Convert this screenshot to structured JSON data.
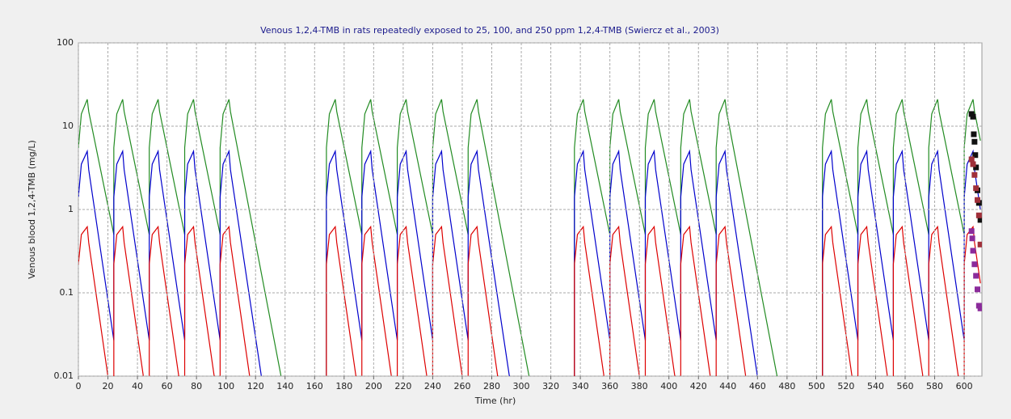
{
  "chart_data": {
    "type": "line",
    "title": "Venous 1,2,4-TMB in rats repeatedly exposed to 25, 100, and 250 ppm 1,2,4-TMB (Swiercz et al., 2003)",
    "x_label": "Time (hr)",
    "y_label": "Venous blood 1,2,4-TMB (mg/L)",
    "xlim": [
      0,
      612
    ],
    "ylim": [
      0.01,
      100
    ],
    "log_y": true,
    "grid": true,
    "xticks": [
      0,
      20,
      40,
      60,
      80,
      100,
      120,
      140,
      160,
      180,
      200,
      220,
      240,
      260,
      280,
      300,
      320,
      340,
      360,
      380,
      400,
      420,
      440,
      460,
      480,
      500,
      520,
      540,
      560,
      580,
      600
    ],
    "yticks": [
      0.01,
      0.1,
      1,
      10,
      100
    ],
    "series": [
      {
        "style": "line",
        "color": "#228b22",
        "x": [
          0,
          2,
          6,
          7,
          24,
          24,
          26,
          30,
          31,
          48,
          48,
          50,
          54,
          55,
          72,
          72,
          74,
          78,
          79,
          96,
          96,
          98,
          102,
          103,
          141,
          168,
          168,
          170,
          174,
          175,
          192,
          192,
          194,
          198,
          199,
          216,
          216,
          218,
          222,
          223,
          240,
          240,
          242,
          246,
          247,
          264,
          264,
          266,
          270,
          271,
          309,
          336,
          336,
          338,
          342,
          343,
          360,
          360,
          362,
          366,
          367,
          384,
          384,
          386,
          390,
          391,
          408,
          408,
          410,
          414,
          415,
          432,
          432,
          434,
          438,
          439,
          477,
          504,
          504,
          506,
          510,
          511,
          528,
          528,
          530,
          534,
          535,
          552,
          552,
          554,
          558,
          559,
          576,
          576,
          578,
          582,
          583,
          600,
          600,
          602,
          606,
          607,
          611
        ],
        "values": [
          5.5,
          14,
          21,
          15,
          0.5,
          5.5,
          14,
          21,
          15,
          0.5,
          5.5,
          14,
          21,
          15,
          0.5,
          5.5,
          14,
          21,
          15,
          0.5,
          5.5,
          14,
          21,
          15,
          0.0045,
          0.003,
          5.5,
          14,
          21,
          15,
          0.5,
          5.5,
          14,
          21,
          15,
          0.5,
          5.5,
          14,
          21,
          15,
          0.5,
          5.5,
          14,
          21,
          15,
          0.5,
          5.5,
          14,
          21,
          15,
          0.0045,
          0.003,
          5.5,
          14,
          21,
          15,
          0.5,
          5.5,
          14,
          21,
          15,
          0.5,
          5.5,
          14,
          21,
          15,
          0.5,
          5.5,
          14,
          21,
          15,
          0.5,
          5.5,
          14,
          21,
          15,
          0.0045,
          0.003,
          5.5,
          14,
          21,
          15,
          0.5,
          5.5,
          14,
          21,
          15,
          0.5,
          5.5,
          14,
          21,
          15,
          0.5,
          5.5,
          14,
          21,
          15,
          0.5,
          5.5,
          14,
          21,
          15,
          6.7
        ]
      },
      {
        "style": "line",
        "color": "#0000cc",
        "x": [
          0,
          2,
          6,
          7,
          24,
          24,
          26,
          30,
          31,
          48,
          48,
          50,
          54,
          55,
          72,
          72,
          74,
          78,
          79,
          96,
          96,
          98,
          102,
          103,
          128,
          168,
          168,
          170,
          174,
          175,
          192,
          192,
          194,
          198,
          199,
          216,
          216,
          218,
          222,
          223,
          240,
          240,
          242,
          246,
          247,
          264,
          264,
          266,
          270,
          271,
          296,
          336,
          336,
          338,
          342,
          343,
          360,
          360,
          362,
          366,
          367,
          384,
          384,
          386,
          390,
          391,
          408,
          408,
          410,
          414,
          415,
          432,
          432,
          434,
          438,
          439,
          464,
          504,
          504,
          506,
          510,
          511,
          528,
          528,
          530,
          534,
          535,
          552,
          552,
          554,
          558,
          559,
          576,
          576,
          578,
          582,
          583,
          600,
          600,
          602,
          606,
          607,
          611
        ],
        "values": [
          1.4,
          3.5,
          5,
          3,
          0.027,
          1.4,
          3.5,
          5,
          3,
          0.027,
          1.4,
          3.5,
          5,
          3,
          0.027,
          1.4,
          3.5,
          5,
          3,
          0.027,
          1.4,
          3.5,
          5,
          3,
          0.0033,
          0.002,
          1.4,
          3.5,
          5,
          3,
          0.027,
          1.4,
          3.5,
          5,
          3,
          0.027,
          1.4,
          3.5,
          5,
          3,
          0.027,
          1.4,
          3.5,
          5,
          3,
          0.027,
          1.4,
          3.5,
          5,
          3,
          0.0033,
          0.002,
          1.4,
          3.5,
          5,
          3,
          0.027,
          1.4,
          3.5,
          5,
          3,
          0.027,
          1.4,
          3.5,
          5,
          3,
          0.027,
          1.4,
          3.5,
          5,
          3,
          0.027,
          1.4,
          3.5,
          5,
          3,
          0.0033,
          0.002,
          1.4,
          3.5,
          5,
          3,
          0.027,
          1.4,
          3.5,
          5,
          3,
          0.027,
          1.4,
          3.5,
          5,
          3,
          0.027,
          1.4,
          3.5,
          5,
          3,
          0.027,
          1.4,
          3.5,
          5,
          3,
          0.99
        ]
      },
      {
        "style": "line",
        "color": "#dd0000",
        "x": [
          0,
          2,
          6,
          7,
          24,
          24,
          26,
          30,
          31,
          48,
          48,
          50,
          54,
          55,
          72,
          72,
          74,
          78,
          79,
          96,
          96,
          98,
          102,
          103,
          120,
          168,
          168,
          170,
          174,
          175,
          192,
          192,
          194,
          198,
          199,
          216,
          216,
          218,
          222,
          223,
          240,
          240,
          242,
          246,
          247,
          264,
          264,
          266,
          270,
          271,
          288,
          336,
          336,
          338,
          342,
          343,
          360,
          360,
          362,
          366,
          367,
          384,
          384,
          386,
          390,
          391,
          408,
          408,
          410,
          414,
          415,
          432,
          432,
          434,
          438,
          439,
          456,
          504,
          504,
          506,
          510,
          511,
          528,
          528,
          530,
          534,
          535,
          552,
          552,
          554,
          558,
          559,
          576,
          576,
          578,
          582,
          583,
          600,
          600,
          602,
          606,
          607,
          611
        ],
        "values": [
          0.22,
          0.5,
          0.62,
          0.4,
          0.0032,
          0.22,
          0.5,
          0.62,
          0.4,
          0.0032,
          0.22,
          0.5,
          0.62,
          0.4,
          0.0032,
          0.22,
          0.5,
          0.62,
          0.4,
          0.0032,
          0.22,
          0.5,
          0.62,
          0.4,
          0.0032,
          0.002,
          0.22,
          0.5,
          0.62,
          0.4,
          0.0032,
          0.22,
          0.5,
          0.62,
          0.4,
          0.0032,
          0.22,
          0.5,
          0.62,
          0.4,
          0.0032,
          0.22,
          0.5,
          0.62,
          0.4,
          0.0032,
          0.22,
          0.5,
          0.62,
          0.4,
          0.0032,
          0.002,
          0.22,
          0.5,
          0.62,
          0.4,
          0.0032,
          0.22,
          0.5,
          0.62,
          0.4,
          0.0032,
          0.22,
          0.5,
          0.62,
          0.4,
          0.0032,
          0.22,
          0.5,
          0.62,
          0.4,
          0.0032,
          0.22,
          0.5,
          0.62,
          0.4,
          0.0032,
          0.002,
          0.22,
          0.5,
          0.62,
          0.4,
          0.0032,
          0.22,
          0.5,
          0.62,
          0.4,
          0.0032,
          0.22,
          0.5,
          0.62,
          0.4,
          0.0032,
          0.22,
          0.5,
          0.62,
          0.4,
          0.0032,
          0.22,
          0.5,
          0.62,
          0.4,
          0.13
        ]
      },
      {
        "style": "marker",
        "color": "#111111",
        "x": [
          605,
          606,
          606.5,
          607,
          607.5,
          608,
          609,
          610,
          611
        ],
        "values": [
          14,
          13,
          8,
          6.5,
          4.5,
          3.2,
          1.7,
          1.2,
          0.75
        ]
      },
      {
        "style": "marker",
        "color": "#a0303a",
        "x": [
          605,
          606,
          607,
          608,
          609,
          610,
          611
        ],
        "values": [
          4,
          3.5,
          2.6,
          1.8,
          1.3,
          0.85,
          0.38
        ]
      },
      {
        "style": "marker",
        "color": "#8b2b9b",
        "x": [
          605,
          605.5,
          606,
          607,
          608,
          609,
          610,
          611
        ],
        "values": [
          0.55,
          0.45,
          0.32,
          0.22,
          0.16,
          0.11,
          0.07,
          0.065
        ]
      }
    ]
  }
}
